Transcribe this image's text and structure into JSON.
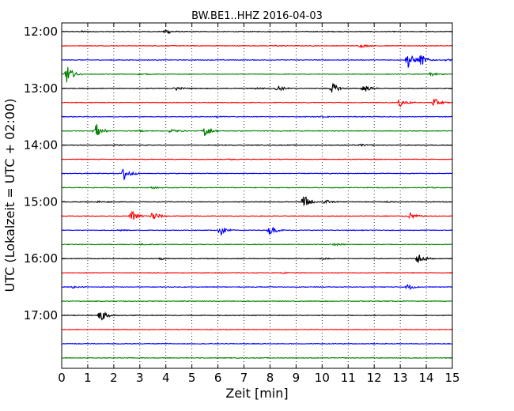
{
  "chart_data": {
    "type": "line",
    "title": "BW.BE1..HHZ 2016-04-03",
    "xlabel": "Zeit  [min]",
    "ylabel": "UTC (Lokalzeit = UTC + 02:00)",
    "xlim": [
      0,
      15
    ],
    "x_ticks": [
      "0",
      "1",
      "2",
      "3",
      "4",
      "5",
      "6",
      "7",
      "8",
      "9",
      "10",
      "11",
      "12",
      "13",
      "14",
      "15"
    ],
    "y_ticks": [
      "12:00",
      "13:00",
      "14:00",
      "15:00",
      "16:00",
      "17:00"
    ],
    "grid": "vertical dotted",
    "colors": [
      "#000000",
      "#ff0000",
      "#0000ff",
      "#007f00"
    ],
    "traces_start": "12:00",
    "trace_interval_min": 15,
    "series": [
      {
        "start": "12:00",
        "color": "#000000",
        "events": [
          {
            "t": 4.0,
            "a": 0.45
          },
          {
            "t": 0.8,
            "a": 0.1
          }
        ]
      },
      {
        "start": "12:15",
        "color": "#ff0000",
        "events": [
          {
            "t": 11.5,
            "a": 0.25
          },
          {
            "t": 8.2,
            "a": 0.08
          }
        ]
      },
      {
        "start": "12:30",
        "color": "#0000ff",
        "events": [
          {
            "t": 13.3,
            "a": 1.3
          },
          {
            "t": 13.8,
            "a": 0.9
          },
          {
            "t": 14.8,
            "a": 0.15
          }
        ]
      },
      {
        "start": "12:45",
        "color": "#007f00",
        "events": [
          {
            "t": 0.2,
            "a": 1.5
          },
          {
            "t": 14.2,
            "a": 0.3
          },
          {
            "t": 3.0,
            "a": 0.08
          }
        ]
      },
      {
        "start": "13:00",
        "color": "#000000",
        "events": [
          {
            "t": 4.4,
            "a": 0.3
          },
          {
            "t": 8.3,
            "a": 0.55
          },
          {
            "t": 10.4,
            "a": 0.9
          },
          {
            "t": 11.6,
            "a": 0.7
          },
          {
            "t": 7.5,
            "a": 0.15
          }
        ]
      },
      {
        "start": "13:15",
        "color": "#ff0000",
        "events": [
          {
            "t": 13.0,
            "a": 0.7
          },
          {
            "t": 14.3,
            "a": 0.75
          }
        ]
      },
      {
        "start": "13:30",
        "color": "#0000ff",
        "events": [
          {
            "t": 6.0,
            "a": 0.1
          },
          {
            "t": 10.0,
            "a": 0.1
          }
        ]
      },
      {
        "start": "13:45",
        "color": "#007f00",
        "events": [
          {
            "t": 1.3,
            "a": 1.4
          },
          {
            "t": 4.2,
            "a": 0.35
          },
          {
            "t": 5.5,
            "a": 0.9
          },
          {
            "t": 3.0,
            "a": 0.1
          }
        ]
      },
      {
        "start": "14:00",
        "color": "#000000",
        "events": [
          {
            "t": 11.5,
            "a": 0.18
          },
          {
            "t": 2.0,
            "a": 0.08
          }
        ]
      },
      {
        "start": "14:15",
        "color": "#ff0000",
        "events": [
          {
            "t": 6.5,
            "a": 0.08
          },
          {
            "t": 12.0,
            "a": 0.08
          }
        ]
      },
      {
        "start": "14:30",
        "color": "#0000ff",
        "events": [
          {
            "t": 2.4,
            "a": 1.2
          }
        ]
      },
      {
        "start": "14:45",
        "color": "#007f00",
        "events": [
          {
            "t": 3.5,
            "a": 0.15
          },
          {
            "t": 14.0,
            "a": 0.12
          }
        ]
      },
      {
        "start": "15:00",
        "color": "#000000",
        "events": [
          {
            "t": 9.3,
            "a": 1.2
          },
          {
            "t": 10.1,
            "a": 0.35
          },
          {
            "t": 1.4,
            "a": 0.15
          },
          {
            "t": 12.5,
            "a": 0.12
          }
        ]
      },
      {
        "start": "15:15",
        "color": "#ff0000",
        "events": [
          {
            "t": 2.7,
            "a": 0.8
          },
          {
            "t": 3.5,
            "a": 0.9
          },
          {
            "t": 13.4,
            "a": 0.5
          }
        ]
      },
      {
        "start": "15:30",
        "color": "#0000ff",
        "events": [
          {
            "t": 6.1,
            "a": 0.9
          },
          {
            "t": 8.0,
            "a": 0.8
          },
          {
            "t": 2.2,
            "a": 0.12
          }
        ]
      },
      {
        "start": "15:45",
        "color": "#007f00",
        "events": [
          {
            "t": 10.5,
            "a": 0.2
          },
          {
            "t": 3.0,
            "a": 0.1
          }
        ]
      },
      {
        "start": "16:00",
        "color": "#000000",
        "events": [
          {
            "t": 13.7,
            "a": 0.9
          },
          {
            "t": 3.8,
            "a": 0.15
          },
          {
            "t": 10.0,
            "a": 0.12
          }
        ]
      },
      {
        "start": "16:15",
        "color": "#ff0000",
        "events": [
          {
            "t": 8.5,
            "a": 0.08
          }
        ]
      },
      {
        "start": "16:30",
        "color": "#0000ff",
        "events": [
          {
            "t": 13.3,
            "a": 0.5
          },
          {
            "t": 0.4,
            "a": 0.15
          }
        ]
      },
      {
        "start": "16:45",
        "color": "#007f00",
        "events": []
      },
      {
        "start": "17:00",
        "color": "#000000",
        "events": [
          {
            "t": 1.5,
            "a": 1.2
          }
        ]
      },
      {
        "start": "17:15",
        "color": "#ff0000",
        "events": []
      },
      {
        "start": "17:30",
        "color": "#0000ff",
        "events": []
      },
      {
        "start": "17:45",
        "color": "#007f00",
        "events": []
      }
    ]
  }
}
